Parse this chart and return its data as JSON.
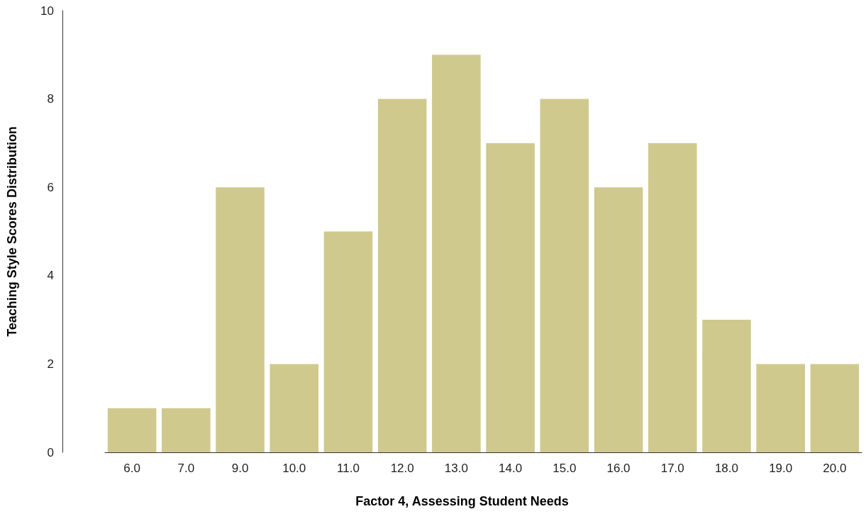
{
  "chart_data": {
    "type": "bar",
    "xlabel": "Factor 4, Assessing Student Needs",
    "ylabel": "Teaching Style Scores Distribution",
    "categories": [
      "6.0",
      "7.0",
      "9.0",
      "10.0",
      "11.0",
      "12.0",
      "13.0",
      "14.0",
      "15.0",
      "16.0",
      "17.0",
      "18.0",
      "19.0",
      "20.0"
    ],
    "values": [
      1,
      1,
      6,
      2,
      5,
      8,
      9,
      7,
      8,
      6,
      7,
      3,
      2,
      2
    ],
    "color": "#d0c98e",
    "ylim": [
      0,
      10
    ],
    "yticks": [
      0,
      2,
      4,
      6,
      8,
      10
    ],
    "grid": false
  }
}
